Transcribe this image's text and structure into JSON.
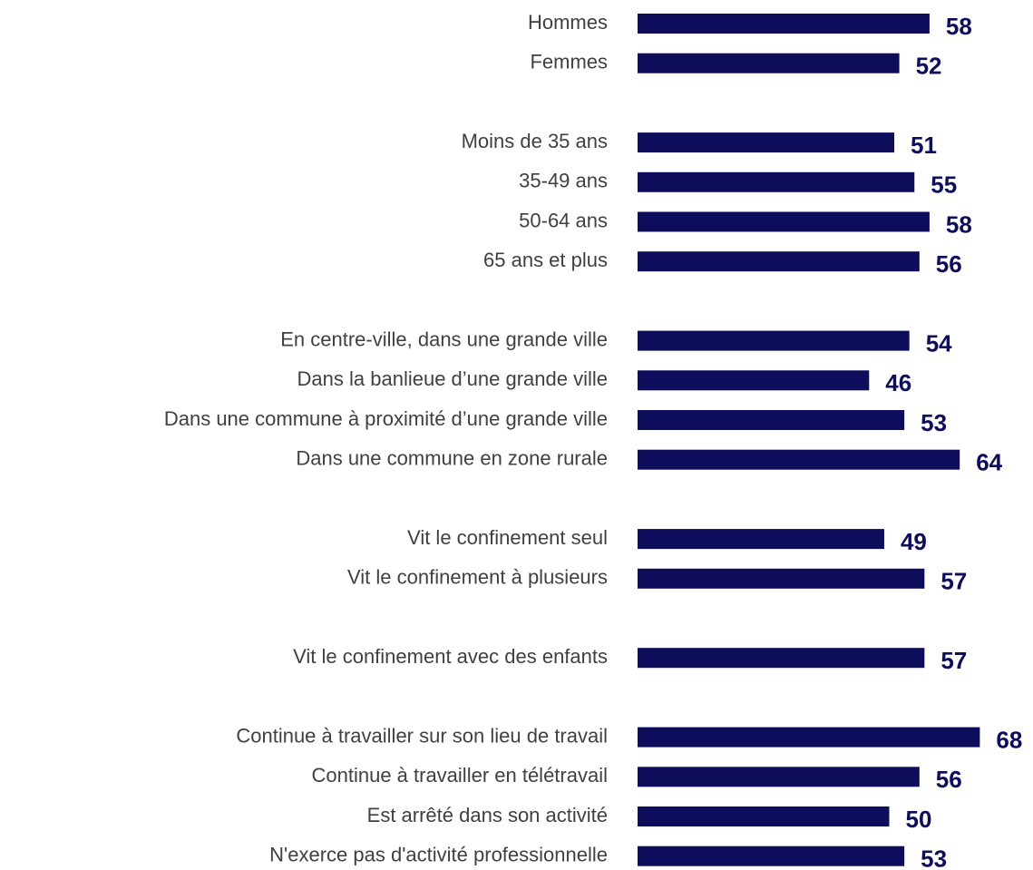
{
  "chart_data": {
    "type": "bar",
    "orientation": "horizontal",
    "color": "#0d0d5c",
    "groups": [
      {
        "categories": [
          "Hommes",
          "Femmes"
        ],
        "values": [
          58,
          52
        ]
      },
      {
        "categories": [
          "Moins de 35 ans",
          "35-49 ans",
          "50-64 ans",
          "65 ans et plus"
        ],
        "values": [
          51,
          55,
          58,
          56
        ]
      },
      {
        "categories": [
          "En centre-ville, dans une grande ville",
          "Dans la banlieue d’une grande ville",
          "Dans une commune à proximité d’une grande ville",
          "Dans une commune en zone rurale"
        ],
        "values": [
          54,
          46,
          53,
          64
        ]
      },
      {
        "categories": [
          "Vit le confinement seul",
          "Vit le confinement à plusieurs"
        ],
        "values": [
          49,
          57
        ]
      },
      {
        "categories": [
          "Vit le confinement avec des enfants"
        ],
        "values": [
          57
        ]
      },
      {
        "categories": [
          "Continue à travailler sur son lieu de travail",
          "Continue à travailler en télétravail",
          "Est arrêté dans son activité",
          "N'exerce pas d'activité professionnelle"
        ],
        "values": [
          68,
          56,
          50,
          53
        ]
      }
    ]
  }
}
